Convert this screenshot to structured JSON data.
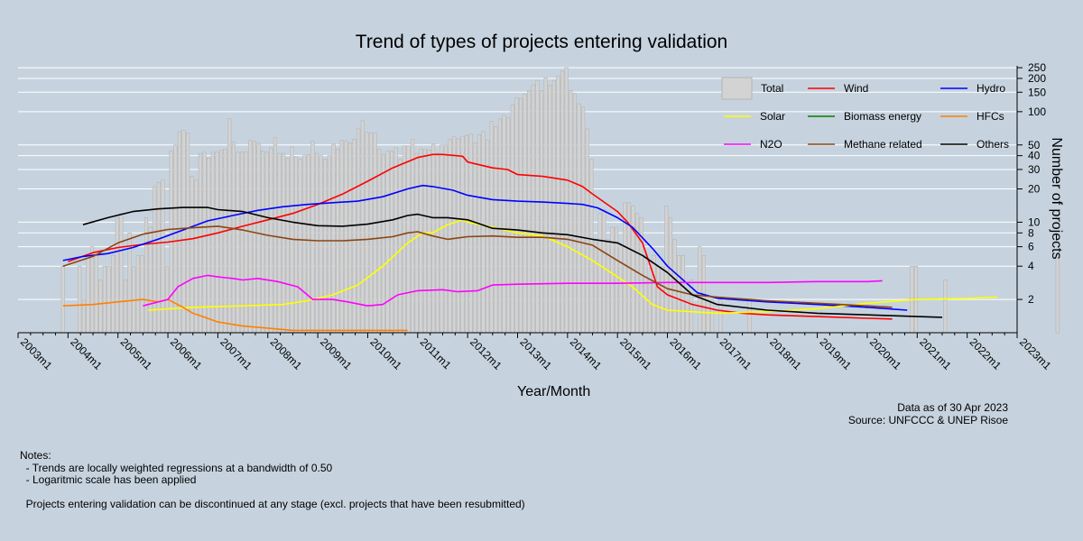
{
  "chart_data": {
    "type": "bar+line",
    "title": "Trend of types of projects entering validation",
    "xlabel": "Year/Month",
    "ylabel": "Number of projects",
    "yscale": "log",
    "ylim": [
      1,
      260
    ],
    "y_ticks": [
      2,
      4,
      6,
      8,
      10,
      20,
      30,
      40,
      50,
      100,
      150,
      200,
      250
    ],
    "x_ticks": [
      "2003m1",
      "2004m1",
      "2005m1",
      "2006m1",
      "2007m1",
      "2008m1",
      "2009m1",
      "2010m1",
      "2011m1",
      "2012m1",
      "2013m1",
      "2014m1",
      "2015m1",
      "2016m1",
      "2017m1",
      "2018m1",
      "2019m1",
      "2020m1",
      "2021m1",
      "2022m1",
      "2023m1"
    ],
    "legend_position": "top-right",
    "bars": {
      "name": "Total",
      "color": "#d3d3d3",
      "start": 2003.9,
      "step": 0.0833,
      "values": [
        4,
        1,
        1,
        1,
        4,
        2,
        5,
        6,
        5,
        3,
        4,
        4,
        5,
        11,
        12,
        3,
        8,
        4,
        5,
        5,
        11,
        9,
        21,
        23,
        24,
        4,
        44,
        50,
        66,
        68,
        64,
        26,
        24,
        42,
        43,
        38,
        43,
        43,
        45,
        46,
        87,
        53,
        43,
        43,
        43,
        55,
        54,
        52,
        44,
        43,
        47,
        58,
        42,
        42,
        38,
        48,
        39,
        37,
        40,
        41,
        54,
        42,
        40,
        37,
        40,
        51,
        46,
        55,
        54,
        52,
        56,
        70,
        83,
        65,
        64,
        64,
        46,
        41,
        44,
        44,
        47,
        37,
        49,
        49,
        56,
        42,
        46,
        46,
        45,
        51,
        42,
        50,
        50,
        56,
        60,
        57,
        60,
        61,
        63,
        52,
        62,
        66,
        55,
        82,
        73,
        86,
        93,
        88,
        115,
        133,
        132,
        145,
        155,
        175,
        192,
        155,
        203,
        173,
        192,
        210,
        233,
        250,
        155,
        146,
        118,
        110,
        70,
        37,
        7,
        12,
        13,
        7,
        9,
        9,
        6,
        15,
        15,
        14,
        12,
        11,
        5,
        3,
        5,
        4,
        4,
        14,
        11,
        7,
        5,
        5,
        2,
        3,
        1,
        6,
        5,
        2,
        2,
        1,
        2,
        1,
        1,
        1,
        1,
        1,
        1,
        2,
        1,
        1,
        1,
        1,
        1,
        1,
        1,
        1,
        1,
        1,
        1,
        1,
        1,
        1,
        1,
        1,
        1,
        1,
        1,
        1,
        1,
        1,
        1,
        1,
        1,
        1,
        1,
        1,
        1,
        1,
        1,
        1,
        1,
        1,
        1,
        1,
        1,
        1,
        4,
        4,
        1,
        1,
        1,
        1,
        1,
        1,
        3,
        1,
        1,
        1,
        1,
        1,
        1,
        1,
        1,
        1,
        1,
        1,
        1,
        1,
        1,
        1,
        1,
        1,
        1,
        1,
        1,
        1,
        1,
        1,
        1,
        1,
        1,
        5,
        1,
        1,
        1,
        1
      ]
    },
    "series": [
      {
        "name": "Wind",
        "color": "#ff0000",
        "x": [
          2004.0,
          2004.5,
          2005.0,
          2005.5,
          2006.0,
          2006.5,
          2007.0,
          2007.5,
          2008.0,
          2008.5,
          2009.0,
          2009.5,
          2010.0,
          2010.5,
          2011.0,
          2011.3,
          2011.5,
          2011.9,
          2012.0,
          2012.5,
          2012.8,
          2013.0,
          2013.5,
          2014.0,
          2014.3,
          2014.5,
          2015.0,
          2015.2,
          2015.5,
          2015.8,
          2016.0,
          2016.5,
          2017.0,
          2017.5,
          2018.0,
          2019.0,
          2020.0,
          2020.5
        ],
        "values": [
          4.4,
          5.3,
          5.9,
          6.3,
          6.6,
          7.1,
          8.0,
          9.2,
          10.5,
          12.0,
          14.5,
          18.0,
          23.5,
          31.0,
          38.5,
          41.0,
          41.0,
          39.5,
          35.0,
          31.0,
          30.0,
          27.0,
          26.0,
          24.0,
          21.0,
          18.0,
          12.5,
          10.0,
          6.5,
          2.6,
          2.2,
          1.8,
          1.6,
          1.5,
          1.45,
          1.4,
          1.35,
          1.33
        ]
      },
      {
        "name": "Hydro",
        "color": "#0000ff",
        "x": [
          2003.9,
          2004.3,
          2004.8,
          2005.3,
          2005.8,
          2006.3,
          2006.8,
          2007.3,
          2007.8,
          2008.3,
          2008.8,
          2009.3,
          2009.8,
          2010.3,
          2010.8,
          2011.1,
          2011.3,
          2011.7,
          2012.0,
          2012.5,
          2013.0,
          2013.5,
          2014.0,
          2014.3,
          2014.6,
          2015.0,
          2015.3,
          2015.7,
          2016.0,
          2016.6,
          2017.0,
          2018.0,
          2019.0,
          2020.0,
          2020.8
        ],
        "values": [
          4.5,
          4.9,
          5.2,
          5.9,
          7.0,
          8.5,
          10.3,
          11.5,
          12.8,
          13.8,
          14.5,
          15.0,
          15.5,
          17.0,
          20.0,
          21.5,
          21.0,
          19.5,
          17.5,
          16.0,
          15.5,
          15.2,
          14.8,
          14.5,
          13.5,
          11.0,
          9.0,
          5.8,
          4.0,
          2.3,
          2.05,
          1.9,
          1.8,
          1.7,
          1.6
        ]
      },
      {
        "name": "Solar",
        "color": "#ffff00",
        "x": [
          2005.6,
          2006.5,
          2007.5,
          2008.3,
          2008.8,
          2009.3,
          2009.8,
          2010.3,
          2010.8,
          2011.1,
          2011.3,
          2011.6,
          2011.9,
          2012.0,
          2012.5,
          2013.0,
          2013.5,
          2014.0,
          2014.5,
          2015.0,
          2015.3,
          2015.7,
          2016.0,
          2016.5,
          2017.0,
          2018.0,
          2019.0,
          2020.0,
          2021.0,
          2022.0,
          2022.6
        ],
        "values": [
          1.6,
          1.7,
          1.75,
          1.8,
          1.95,
          2.2,
          2.7,
          4.0,
          6.5,
          8.0,
          8.0,
          9.5,
          10.5,
          10.0,
          9.0,
          8.0,
          7.5,
          6.0,
          4.5,
          3.2,
          2.6,
          1.8,
          1.6,
          1.55,
          1.5,
          1.55,
          1.65,
          1.85,
          2.0,
          2.05,
          2.1
        ]
      },
      {
        "name": "Biomass energy",
        "color": "#008000",
        "x": [],
        "values": []
      },
      {
        "name": "HFCs",
        "color": "#ff8000",
        "x": [
          2003.9,
          2004.5,
          2005.0,
          2005.5,
          2005.8,
          2006.0,
          2006.3,
          2006.5,
          2006.7,
          2007.0,
          2007.5,
          2008.0,
          2008.5,
          2009.0,
          2009.5,
          2010.0,
          2010.5,
          2010.8
        ],
        "values": [
          1.75,
          1.8,
          1.9,
          2.0,
          1.9,
          2.0,
          1.7,
          1.5,
          1.4,
          1.25,
          1.15,
          1.1,
          1.05,
          1.05,
          1.05,
          1.05,
          1.05,
          1.05
        ]
      },
      {
        "name": "N2O",
        "color": "#ff00ff",
        "x": [
          2005.5,
          2006.0,
          2006.2,
          2006.5,
          2006.8,
          2007.0,
          2007.3,
          2007.5,
          2007.8,
          2008.2,
          2008.6,
          2008.9,
          2009.3,
          2009.6,
          2010.0,
          2010.3,
          2010.6,
          2011.0,
          2011.5,
          2011.8,
          2012.2,
          2012.5,
          2013.0,
          2014.0,
          2015.0,
          2016.0,
          2017.0,
          2018.0,
          2019.0,
          2020.0,
          2020.3
        ],
        "values": [
          1.75,
          2.0,
          2.6,
          3.1,
          3.3,
          3.2,
          3.1,
          3.0,
          3.1,
          2.9,
          2.6,
          2.0,
          2.0,
          1.9,
          1.75,
          1.8,
          2.2,
          2.4,
          2.45,
          2.35,
          2.4,
          2.7,
          2.75,
          2.8,
          2.8,
          2.85,
          2.85,
          2.85,
          2.9,
          2.9,
          2.95
        ]
      },
      {
        "name": "Methane related",
        "color": "#8b4513",
        "x": [
          2003.9,
          2004.5,
          2005.0,
          2005.5,
          2006.0,
          2006.5,
          2007.0,
          2007.5,
          2008.0,
          2008.5,
          2009.0,
          2009.5,
          2010.0,
          2010.5,
          2010.8,
          2011.0,
          2011.3,
          2011.6,
          2012.0,
          2012.5,
          2013.0,
          2013.5,
          2014.0,
          2014.5,
          2015.0,
          2015.5,
          2016.0,
          2016.5,
          2017.0,
          2018.0,
          2019.0,
          2020.0,
          2020.5
        ],
        "values": [
          4.0,
          4.9,
          6.5,
          7.8,
          8.6,
          8.9,
          9.2,
          8.5,
          7.6,
          7.0,
          6.8,
          6.8,
          7.0,
          7.4,
          8.0,
          8.2,
          7.5,
          7.0,
          7.4,
          7.5,
          7.3,
          7.3,
          7.0,
          6.2,
          4.5,
          3.3,
          2.5,
          2.2,
          2.1,
          1.95,
          1.85,
          1.75,
          1.7
        ]
      },
      {
        "name": "Others",
        "color": "#000000",
        "x": [
          2004.3,
          2004.8,
          2005.3,
          2005.8,
          2006.3,
          2006.8,
          2007.0,
          2007.5,
          2008.0,
          2008.5,
          2009.0,
          2009.5,
          2010.0,
          2010.5,
          2010.8,
          2011.0,
          2011.3,
          2011.6,
          2012.0,
          2012.5,
          2013.0,
          2013.5,
          2014.0,
          2014.5,
          2015.0,
          2015.5,
          2016.0,
          2016.5,
          2017.0,
          2018.0,
          2019.0,
          2020.0,
          2021.0,
          2021.5
        ],
        "values": [
          9.5,
          11.0,
          12.5,
          13.2,
          13.6,
          13.6,
          13.0,
          12.5,
          11.0,
          10.0,
          9.3,
          9.2,
          9.6,
          10.5,
          11.5,
          11.8,
          11.0,
          11.0,
          10.5,
          8.8,
          8.5,
          8.0,
          7.7,
          7.0,
          6.5,
          5.0,
          3.5,
          2.2,
          1.8,
          1.6,
          1.5,
          1.45,
          1.4,
          1.38
        ]
      }
    ]
  },
  "source": {
    "date_line": "Data as of 30 Apr 2023",
    "source_line": "Source: UNFCCC & UNEP Risoe"
  },
  "notes": {
    "heading": "Notes:",
    "line1": "  - Trends are locally weighted regressions at a bandwidth of 0.50",
    "line2": "  - Logaritmic scale has been applied",
    "line3": "  Projects entering validation can be discontinued at any stage (excl. projects that have been resubmitted)"
  }
}
